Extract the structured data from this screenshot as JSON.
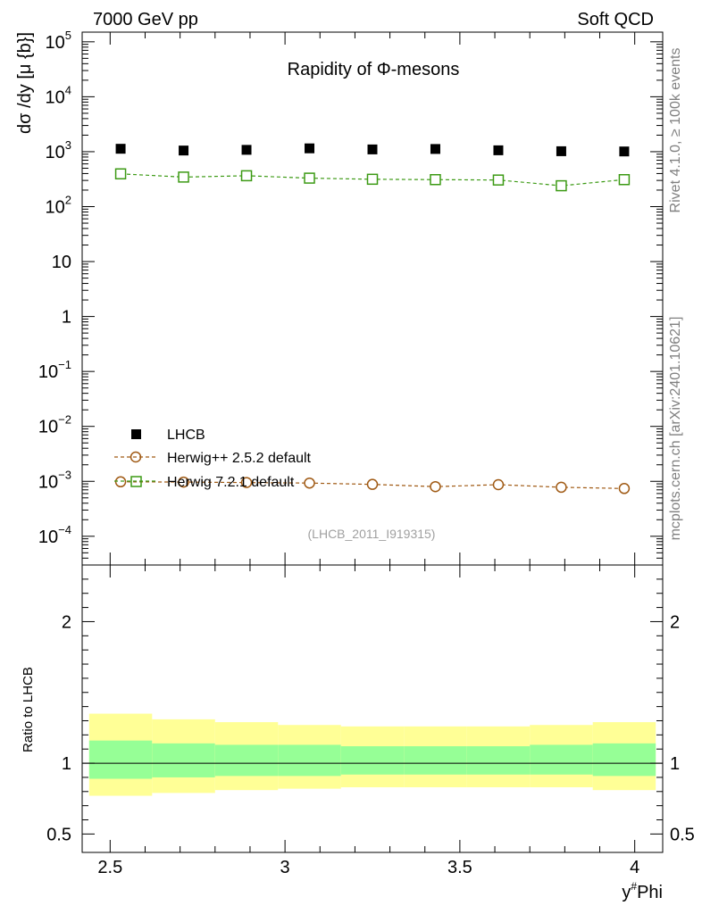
{
  "header": {
    "left": "7000 GeV pp",
    "right": "Soft QCD"
  },
  "side_labels": {
    "rivet": "Rivet 4.1.0, ≥ 100k events",
    "mcplots": "mcplots.cern.ch [arXiv:2401.10621]"
  },
  "colors": {
    "data": "#000000",
    "herwigpp": "#a05a14",
    "herwig7": "#3c9a14",
    "band_outer": "#ffff96",
    "band_inner": "#96ff96"
  },
  "chart_data": [
    {
      "type": "scatter",
      "title": "Rapidity of Φ-mesons",
      "watermark": "(LHCB_2011_I919315)",
      "ylabel": "dσ /dy [μ {b}]",
      "yscale": "log",
      "ylim": [
        3e-05,
        150000.0
      ],
      "xlim": [
        2.42,
        4.08
      ],
      "ytick_labels": [
        {
          "value": 100000.0,
          "base": "10",
          "exp": "5"
        },
        {
          "value": 10000.0,
          "base": "10",
          "exp": "4"
        },
        {
          "value": 1000.0,
          "base": "10",
          "exp": "3"
        },
        {
          "value": 100.0,
          "base": "10",
          "exp": "2"
        },
        {
          "value": 10,
          "base": "10",
          "exp": ""
        },
        {
          "value": 1,
          "base": "1",
          "exp": ""
        },
        {
          "value": 0.1,
          "base": "10",
          "exp": "−1"
        },
        {
          "value": 0.01,
          "base": "10",
          "exp": "−2"
        },
        {
          "value": 0.001,
          "base": "10",
          "exp": "−3"
        },
        {
          "value": 0.0001,
          "base": "10",
          "exp": "−4"
        }
      ],
      "x": [
        2.53,
        2.71,
        2.89,
        3.07,
        3.25,
        3.43,
        3.61,
        3.79,
        3.97
      ],
      "x_edges": [
        2.44,
        2.62,
        2.8,
        2.98,
        3.16,
        3.34,
        3.52,
        3.7,
        3.88,
        4.06
      ],
      "series": [
        {
          "name": "LHCB",
          "marker": "filled-square",
          "values": [
            1130,
            1050,
            1080,
            1150,
            1100,
            1120,
            1060,
            1020,
            1010
          ]
        },
        {
          "name": "Herwig++ 2.5.2 default",
          "marker": "open-circle",
          "values": [
            0.00098,
            0.00097,
            0.00095,
            0.00093,
            0.00088,
            0.0008,
            0.00087,
            0.00078,
            0.00074
          ]
        },
        {
          "name": "Herwig 7.2.1 default",
          "marker": "open-square",
          "values": [
            395,
            345,
            365,
            330,
            315,
            310,
            305,
            240,
            310
          ]
        }
      ]
    },
    {
      "type": "area",
      "ylabel": "Ratio to LHCB",
      "ylim": [
        0.37,
        2.4
      ],
      "xlabel": "y#Phi",
      "xlabel_base": "y",
      "xlabel_sup": "#",
      "xlabel_rest": "Phi",
      "x_ticks": [
        2.5,
        3,
        3.5,
        4
      ],
      "x_tick_labels": [
        "2.5",
        "3",
        "3.5",
        "4"
      ],
      "y_ticks": [
        0.5,
        1,
        2
      ],
      "y_tick_labels": [
        "0.5",
        "1",
        "2"
      ],
      "reference": 1,
      "band_outer_lo": [
        0.77,
        0.79,
        0.81,
        0.82,
        0.83,
        0.83,
        0.83,
        0.83,
        0.81
      ],
      "band_outer_hi": [
        1.35,
        1.31,
        1.29,
        1.27,
        1.26,
        1.26,
        1.26,
        1.27,
        1.29
      ],
      "band_inner_lo": [
        0.89,
        0.9,
        0.91,
        0.91,
        0.92,
        0.92,
        0.92,
        0.92,
        0.91
      ],
      "band_inner_hi": [
        1.16,
        1.14,
        1.13,
        1.13,
        1.12,
        1.12,
        1.12,
        1.13,
        1.14
      ]
    }
  ]
}
